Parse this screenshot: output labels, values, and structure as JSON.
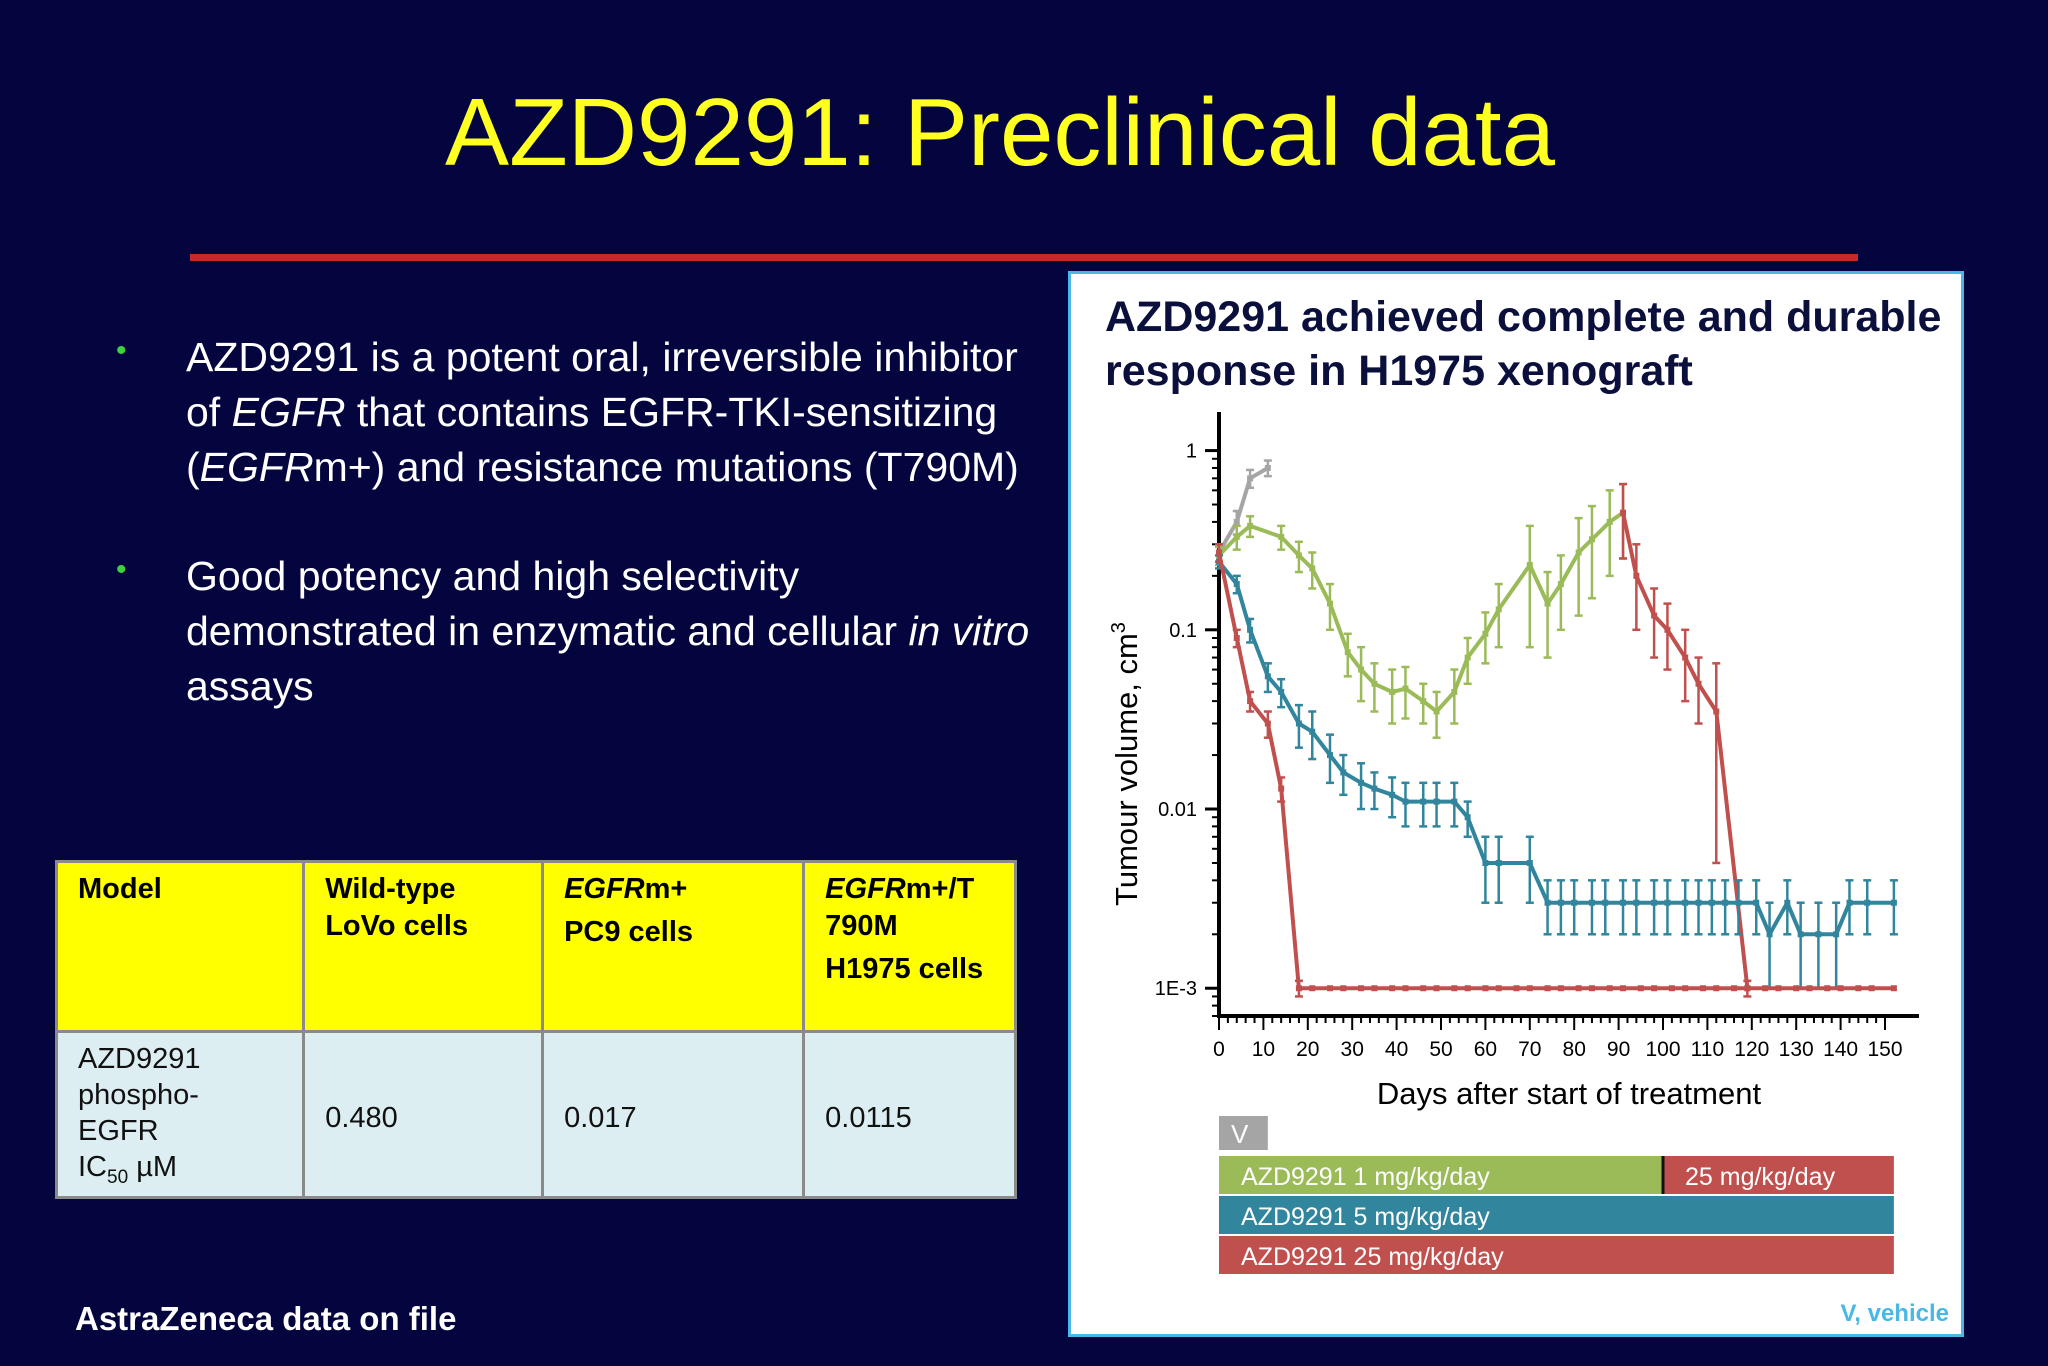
{
  "slide": {
    "title": "AZD9291: Preclinical data",
    "bullets": [
      [
        {
          "t": "AZD9291 is a potent oral, irreversible inhibitor of "
        },
        {
          "t": "EGFR",
          "i": true
        },
        {
          "t": " that contains EGFR-TKI-sensitizing  ("
        },
        {
          "t": "EGFR",
          "i": true
        },
        {
          "t": "m+) and resistance mutations (T790M)"
        }
      ],
      [
        {
          "t": "Good potency and high selectivity demonstrated in enzymatic and cellular "
        },
        {
          "t": "in vitro",
          "i": true
        },
        {
          "t": " assays"
        }
      ]
    ],
    "source": "AstraZeneca data on file"
  },
  "colors": {
    "background": "#04053f",
    "title": "#ffff22",
    "rule": "#c8282d",
    "bullet_dot": "#3cd43c",
    "table_header": "#ffff00",
    "table_values": "#ddeef3",
    "vehicle": "#a5a5a5",
    "dose_1": "#9bbb59",
    "dose_5": "#31859c",
    "dose_25": "#c0504d",
    "panel_border": "#4ab8e6"
  },
  "table": {
    "header_model": "Model",
    "header_wt_line1": "Wild-type",
    "header_wt_line2": "LoVo cells",
    "header_pc9_em": "EGFR",
    "header_pc9_tail": "m+",
    "header_pc9_line2": "PC9 cells",
    "header_h1975_em": "EGFR",
    "header_h1975_tail": "m+/T",
    "header_h1975_line2": "790M",
    "header_h1975_line3": "H1975 cells",
    "row_label_1": "AZD9291",
    "row_label_2": "phospho-",
    "row_label_3": "EGFR",
    "row_label_4_main": "IC",
    "row_label_4_sub": "50",
    "row_label_4_unit": " µM",
    "values": [
      "0.480",
      "0.017",
      "0.0115"
    ]
  },
  "chart_panel": {
    "title": "AZD9291 achieved complete and durable response in H1975 xenograft",
    "vehicle_note": "V, vehicle"
  },
  "chart_data": {
    "type": "line",
    "title": "AZD9291 achieved complete and durable response in H1975 xenograft",
    "xlabel": "Days after start of treatment",
    "ylabel": "Tumour volume, cm",
    "ylabel_sup": "3",
    "yscale": "log",
    "xlim": [
      0,
      150
    ],
    "ylim": [
      0.0007,
      1.6
    ],
    "xticks": [
      0,
      10,
      20,
      30,
      40,
      50,
      60,
      70,
      80,
      90,
      100,
      110,
      120,
      130,
      140,
      150
    ],
    "yticks": [
      {
        "value": 0.001,
        "label": "1E-3"
      },
      {
        "value": 0.01,
        "label": "0.01"
      },
      {
        "value": 0.1,
        "label": "0.1"
      },
      {
        "value": 1,
        "label": "1"
      }
    ],
    "series": [
      {
        "color": "#a5a5a5",
        "points": [
          [
            0,
            0.27,
            0.03
          ],
          [
            4,
            0.4,
            0.06
          ],
          [
            7,
            0.7,
            0.08
          ],
          [
            11,
            0.8,
            0.08
          ]
        ]
      },
      {
        "color": "#9bbb59",
        "points": [
          [
            0,
            0.26,
            0.03
          ],
          [
            4,
            0.33,
            0.05
          ],
          [
            7,
            0.38,
            0.05
          ],
          [
            14,
            0.33,
            0.05
          ],
          [
            18,
            0.26,
            0.05
          ],
          [
            21,
            0.22,
            0.05
          ],
          [
            25,
            0.14,
            0.04
          ],
          [
            29,
            0.075,
            0.02
          ],
          [
            32,
            0.06,
            0.02
          ],
          [
            35,
            0.05,
            0.015
          ],
          [
            39,
            0.045,
            0.015
          ],
          [
            42,
            0.047,
            0.015
          ],
          [
            46,
            0.04,
            0.01
          ],
          [
            49,
            0.035,
            0.01
          ],
          [
            53,
            0.045,
            0.015
          ],
          [
            56,
            0.07,
            0.02
          ],
          [
            60,
            0.095,
            0.03
          ],
          [
            63,
            0.13,
            0.05
          ],
          [
            70,
            0.23,
            0.15
          ],
          [
            74,
            0.14,
            0.07
          ],
          [
            77,
            0.18,
            0.08
          ],
          [
            81,
            0.27,
            0.15
          ],
          [
            84,
            0.32,
            0.17
          ],
          [
            88,
            0.4,
            0.2
          ],
          [
            91,
            0.45,
            0.2
          ]
        ]
      },
      {
        "color": "#c0504d",
        "points": [
          [
            91,
            0.45,
            0.2
          ],
          [
            94,
            0.2,
            0.1
          ],
          [
            98,
            0.12,
            0.05
          ],
          [
            101,
            0.1,
            0.04
          ],
          [
            105,
            0.07,
            0.03
          ],
          [
            108,
            0.05,
            0.02
          ],
          [
            112,
            0.035,
            0.03
          ],
          [
            119,
            0.001,
            0.0001
          ]
        ]
      },
      {
        "color": "#31859c",
        "points": [
          [
            0,
            0.24,
            0.02
          ],
          [
            4,
            0.18,
            0.02
          ],
          [
            7,
            0.1,
            0.015
          ],
          [
            11,
            0.055,
            0.01
          ],
          [
            14,
            0.045,
            0.008
          ],
          [
            18,
            0.03,
            0.008
          ],
          [
            21,
            0.027,
            0.008
          ],
          [
            25,
            0.02,
            0.006
          ],
          [
            28,
            0.016,
            0.004
          ],
          [
            32,
            0.014,
            0.004
          ],
          [
            35,
            0.013,
            0.003
          ],
          [
            39,
            0.012,
            0.003
          ],
          [
            42,
            0.011,
            0.003
          ],
          [
            46,
            0.011,
            0.003
          ],
          [
            49,
            0.011,
            0.003
          ],
          [
            53,
            0.011,
            0.003
          ],
          [
            56,
            0.009,
            0.002
          ],
          [
            60,
            0.005,
            0.002
          ],
          [
            63,
            0.005,
            0.002
          ],
          [
            70,
            0.005,
            0.002
          ],
          [
            74,
            0.003,
            0.001
          ],
          [
            77,
            0.003,
            0.001
          ],
          [
            80,
            0.003,
            0.001
          ],
          [
            84,
            0.003,
            0.001
          ],
          [
            87,
            0.003,
            0.001
          ],
          [
            91,
            0.003,
            0.001
          ],
          [
            94,
            0.003,
            0.001
          ],
          [
            98,
            0.003,
            0.001
          ],
          [
            101,
            0.003,
            0.001
          ],
          [
            105,
            0.003,
            0.001
          ],
          [
            108,
            0.003,
            0.001
          ],
          [
            111,
            0.003,
            0.001
          ],
          [
            114,
            0.003,
            0.001
          ],
          [
            117,
            0.003,
            0.001
          ],
          [
            121,
            0.003,
            0.001
          ],
          [
            124,
            0.002,
            0.001
          ],
          [
            128,
            0.003,
            0.001
          ],
          [
            131,
            0.002,
            0.001
          ],
          [
            135,
            0.002,
            0.001
          ],
          [
            139,
            0.002,
            0.001
          ],
          [
            142,
            0.003,
            0.001
          ],
          [
            146,
            0.003,
            0.001
          ],
          [
            152,
            0.003,
            0.001
          ]
        ]
      },
      {
        "color": "#c0504d",
        "points": [
          [
            0,
            0.27,
            0.03
          ],
          [
            4,
            0.09,
            0.01
          ],
          [
            7,
            0.04,
            0.005
          ],
          [
            11,
            0.03,
            0.005
          ],
          [
            14,
            0.013,
            0.002
          ],
          [
            18,
            0.001,
            0.0001
          ],
          [
            21,
            0.001,
            0
          ],
          [
            25,
            0.001,
            0
          ],
          [
            28,
            0.001,
            0
          ],
          [
            32,
            0.001,
            0
          ],
          [
            35,
            0.001,
            0
          ],
          [
            39,
            0.001,
            0
          ],
          [
            42,
            0.001,
            0
          ],
          [
            46,
            0.001,
            0
          ],
          [
            49,
            0.001,
            0
          ],
          [
            53,
            0.001,
            0
          ],
          [
            56,
            0.001,
            0
          ],
          [
            60,
            0.001,
            0
          ],
          [
            63,
            0.001,
            0
          ],
          [
            67,
            0.001,
            0
          ],
          [
            70,
            0.001,
            0
          ],
          [
            74,
            0.001,
            0
          ],
          [
            77,
            0.001,
            0
          ],
          [
            81,
            0.001,
            0
          ],
          [
            84,
            0.001,
            0
          ],
          [
            88,
            0.001,
            0
          ],
          [
            91,
            0.001,
            0
          ],
          [
            95,
            0.001,
            0
          ],
          [
            98,
            0.001,
            0
          ],
          [
            102,
            0.001,
            0
          ],
          [
            105,
            0.001,
            0
          ],
          [
            109,
            0.001,
            0
          ],
          [
            112,
            0.001,
            0
          ],
          [
            116,
            0.001,
            0
          ],
          [
            119,
            0.001,
            0
          ],
          [
            123,
            0.001,
            0
          ],
          [
            126,
            0.001,
            0
          ],
          [
            130,
            0.001,
            0
          ],
          [
            133,
            0.001,
            0
          ],
          [
            137,
            0.001,
            0
          ],
          [
            140,
            0.001,
            0
          ],
          [
            144,
            0.001,
            0
          ],
          [
            147,
            0.001,
            0
          ],
          [
            152,
            0.001,
            0
          ]
        ]
      }
    ],
    "dosing_bars": [
      {
        "label": "V",
        "color": "#a5a5a5",
        "from": 0,
        "to": 11
      },
      {
        "label": "AZD9291 1 mg/kg/day",
        "color": "#9bbb59",
        "from": 0,
        "to": 100
      },
      {
        "label": "25 mg/kg/day",
        "color": "#c0504d",
        "from": 100,
        "to": 152
      },
      {
        "label": "AZD9291 5 mg/kg/day",
        "color": "#31859c",
        "from": 0,
        "to": 152
      },
      {
        "label": "AZD9291 25 mg/kg/day",
        "color": "#c0504d",
        "from": 0,
        "to": 152
      }
    ]
  }
}
